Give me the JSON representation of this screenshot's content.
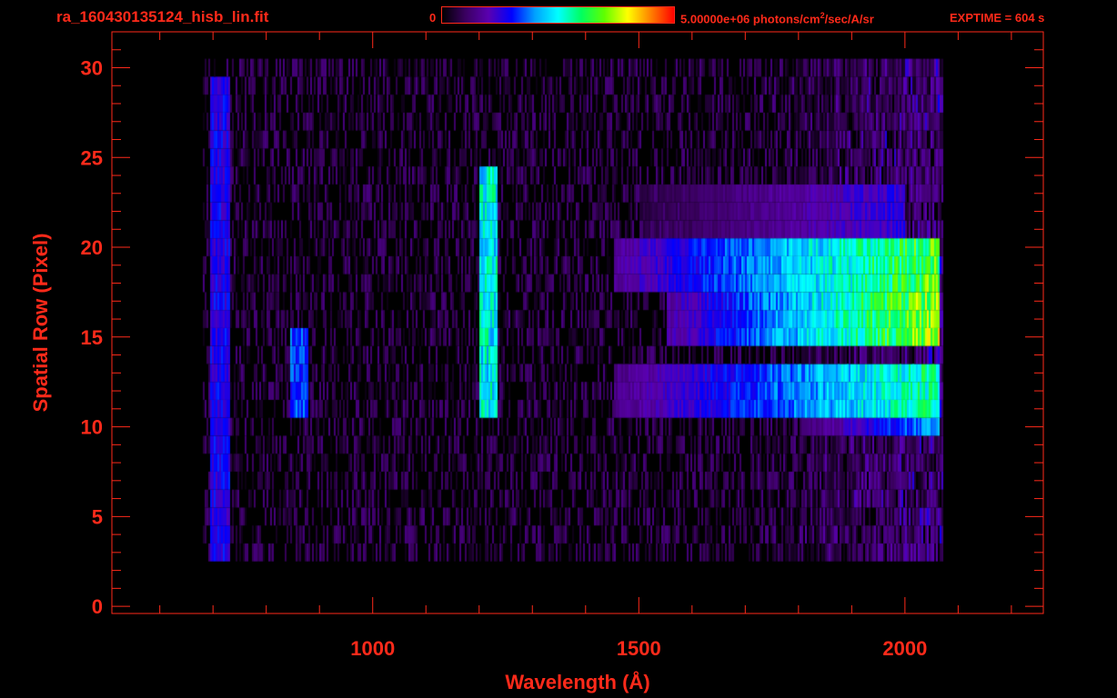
{
  "header": {
    "file_name": "ra_160430135124_hisb_lin.fit",
    "colorbar_min": "0",
    "colorbar_max_prefix": "5.00000e+06 photons/cm",
    "colorbar_max_sup": "2",
    "colorbar_max_suffix": "/sec/A/sr",
    "exptime": "EXPTIME = 604 s"
  },
  "colors": {
    "axis": "#ff2a1a",
    "background": "#000000",
    "colormap": [
      "#000000",
      "#3a0060",
      "#5a00b0",
      "#0000ff",
      "#00a0ff",
      "#00ffff",
      "#00ff60",
      "#60ff00",
      "#ffff00",
      "#ff8000",
      "#ff0000"
    ]
  },
  "chart_data": {
    "type": "heatmap",
    "xlabel": "Wavelength (Å)",
    "ylabel": "Spatial Row (Pixel)",
    "xlim": [
      510,
      2260
    ],
    "ylim": [
      -0.4,
      32
    ],
    "x_ticks": [
      1000,
      1500,
      2000
    ],
    "y_ticks": [
      0,
      5,
      10,
      15,
      20,
      25,
      30
    ],
    "x_minor_step": 100,
    "y_minor_step": 1,
    "colorbar_range": [
      0,
      5000000
    ],
    "data_extent": {
      "x_min": 680,
      "x_max": 2070,
      "row_min": 3,
      "row_max": 30
    },
    "bright_bands": [
      {
        "rows": [
          18,
          20
        ],
        "x_from": 1450,
        "x_to": 2065,
        "peak": 0.72
      },
      {
        "rows": [
          15,
          17
        ],
        "x_from": 1550,
        "x_to": 2065,
        "peak": 0.78
      },
      {
        "rows": [
          11,
          13
        ],
        "x_from": 1450,
        "x_to": 2065,
        "peak": 0.62
      },
      {
        "rows": [
          10,
          10
        ],
        "x_from": 1800,
        "x_to": 2065,
        "peak": 0.45
      },
      {
        "rows": [
          21,
          23
        ],
        "x_from": 1500,
        "x_to": 2000,
        "peak": 0.28
      }
    ],
    "emission_lines": [
      {
        "x": 1216,
        "label": "",
        "rows": [
          11,
          24
        ],
        "peak": 0.55
      },
      {
        "x": 712,
        "label": "",
        "rows": [
          3,
          29
        ],
        "peak": 0.3
      },
      {
        "x": 860,
        "label": "",
        "rows": [
          11,
          15
        ],
        "peak": 0.38
      }
    ]
  }
}
